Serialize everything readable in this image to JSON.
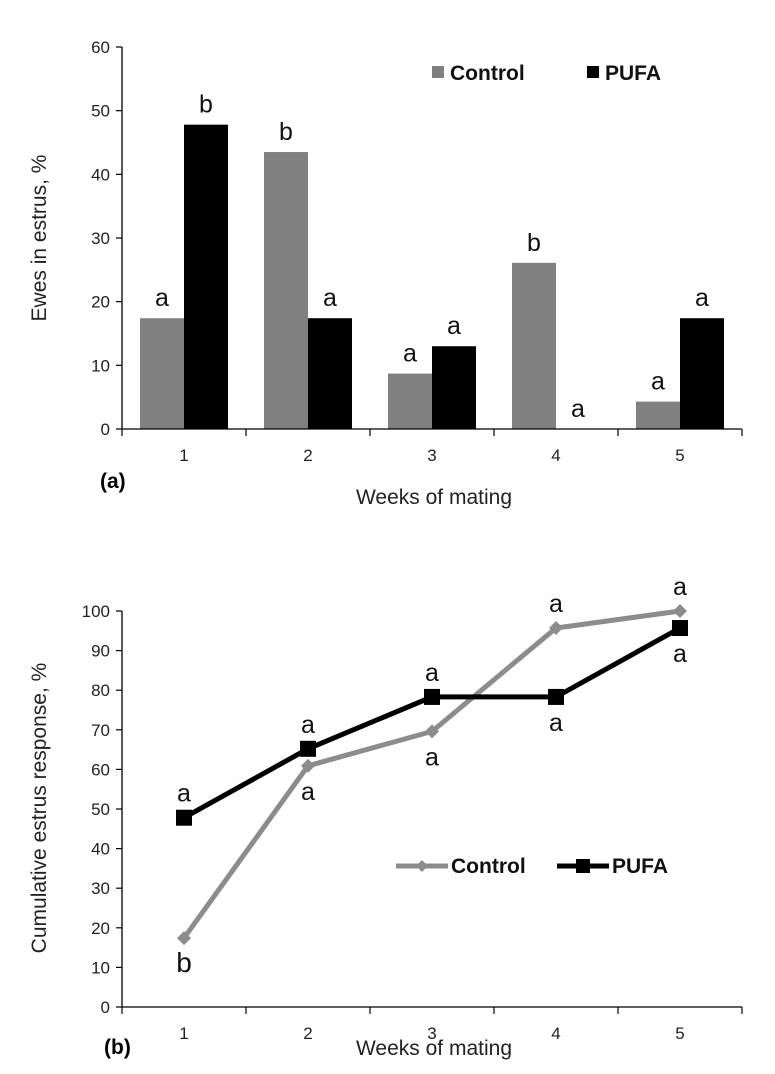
{
  "chart_data": [
    {
      "type": "bar",
      "panel_label": "(a)",
      "title": "",
      "xlabel": "Weeks of mating",
      "ylabel": "Ewes in estrus, %",
      "ylim": [
        0,
        60
      ],
      "yticks": [
        "0",
        "10",
        "20",
        "30",
        "40",
        "50",
        "60"
      ],
      "categories": [
        "1",
        "2",
        "3",
        "4",
        "5"
      ],
      "series": [
        {
          "name": "Control",
          "color": "#808080",
          "values": [
            17.4,
            43.5,
            8.7,
            26.1,
            4.3
          ],
          "letters": [
            "a",
            "b",
            "a",
            "b",
            "a"
          ]
        },
        {
          "name": "PUFA",
          "color": "#000000",
          "values": [
            47.8,
            17.4,
            13.0,
            0,
            17.4
          ],
          "letters": [
            "b",
            "a",
            "a",
            "a",
            "a"
          ]
        }
      ],
      "legend_position": "top-right"
    },
    {
      "type": "line",
      "panel_label": "(b)",
      "title": "",
      "xlabel": "Weeks of mating",
      "ylabel": "Cumulative  estrus response, %",
      "ylim": [
        0,
        100
      ],
      "yticks": [
        "0",
        "10",
        "20",
        "30",
        "40",
        "50",
        "60",
        "70",
        "80",
        "90",
        "100"
      ],
      "categories": [
        "1",
        "2",
        "3",
        "4",
        "5"
      ],
      "series": [
        {
          "name": "Control",
          "color": "#8c8c8c",
          "marker": "diamond",
          "values": [
            17.4,
            60.9,
            69.6,
            95.7,
            100
          ],
          "letters": [
            "b",
            "a",
            "a",
            "a",
            "a"
          ]
        },
        {
          "name": "PUFA",
          "color": "#000000",
          "marker": "square",
          "values": [
            47.8,
            65.2,
            78.3,
            78.3,
            95.7
          ],
          "letters": [
            "a",
            "a",
            "a",
            "a",
            "a"
          ]
        }
      ],
      "legend_position": "center-right"
    }
  ]
}
